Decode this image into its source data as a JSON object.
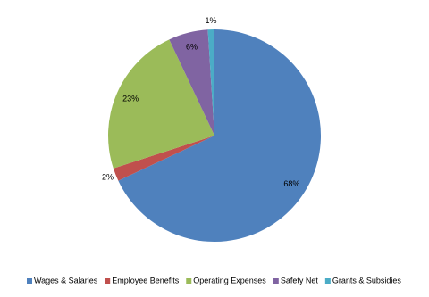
{
  "chart_data": {
    "type": "pie",
    "categories": [
      "Wages & Salaries",
      "Employee Benefits",
      "Operating Expenses",
      "Safety Net",
      "Grants & Subsidies"
    ],
    "values": [
      68,
      2,
      23,
      6,
      1
    ],
    "value_labels": [
      "68%",
      "2%",
      "23%",
      "6%",
      "1%"
    ],
    "colors": [
      "#4f81bd",
      "#c0504d",
      "#9bbb59",
      "#8064a2",
      "#4bacc6"
    ],
    "legend": "bottom"
  }
}
